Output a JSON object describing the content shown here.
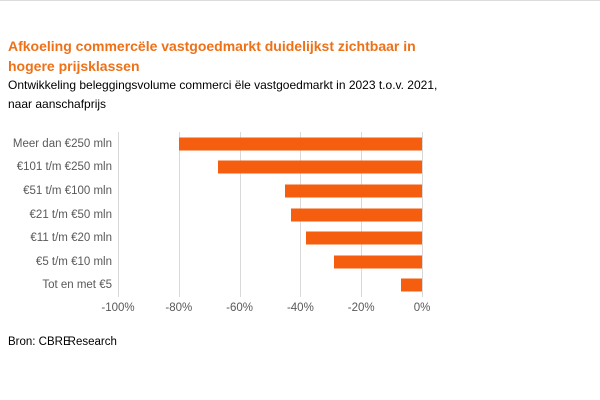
{
  "page": {
    "background": "#ffffff",
    "top_border_color": "#dcdcdc"
  },
  "header": {
    "title_line1": "Afkoeling commercële vastgoedmarkt duidelijkst zichtbaar in",
    "title_line2": "hogere prijsklassen",
    "title_color": "#ee7118",
    "subtitle_line1": "Ontwikkeling beleggingsvolume commerci ële vastgoedmarkt in 2023 t.o.v. 2021,",
    "subtitle_line2": "naar aanschafprijs"
  },
  "chart_data": {
    "type": "bar",
    "orientation": "horizontal",
    "title": "Afkoeling commercële vastgoedmarkt duidelijkst zichtbaar in hogere prijsklassen",
    "subtitle": "Ontwikkeling beleggingsvolume commerci ële vastgoedmarkt in 2023 t.o.v. 2021, naar aanschafprijs",
    "categories": [
      "Meer dan €250 mln",
      "€101 t/m €250 mln",
      "€51 t/m €100 mln",
      "€21 t/m €50 mln",
      "€11 t/m €20 mln",
      "€5 t/m €10 mln",
      "Tot en met €5"
    ],
    "values": [
      -80,
      -67,
      -45,
      -43,
      -38,
      -29,
      -7
    ],
    "unit": "%",
    "xlabel": "",
    "ylabel": "",
    "xlim": [
      -100,
      0
    ],
    "x_ticks": [
      "-100%",
      "-80%",
      "-60%",
      "-40%",
      "-20%",
      "0%"
    ],
    "x_tick_values": [
      -100,
      -80,
      -60,
      -40,
      -20,
      0
    ],
    "grid": true,
    "legend": false,
    "bar_color": "#f45e0e",
    "gridline_color": "#d9d9d9",
    "label_color": "#595959"
  },
  "footer": {
    "source_prefix": "Bron: CBRE",
    "source_suffix": "Research"
  }
}
